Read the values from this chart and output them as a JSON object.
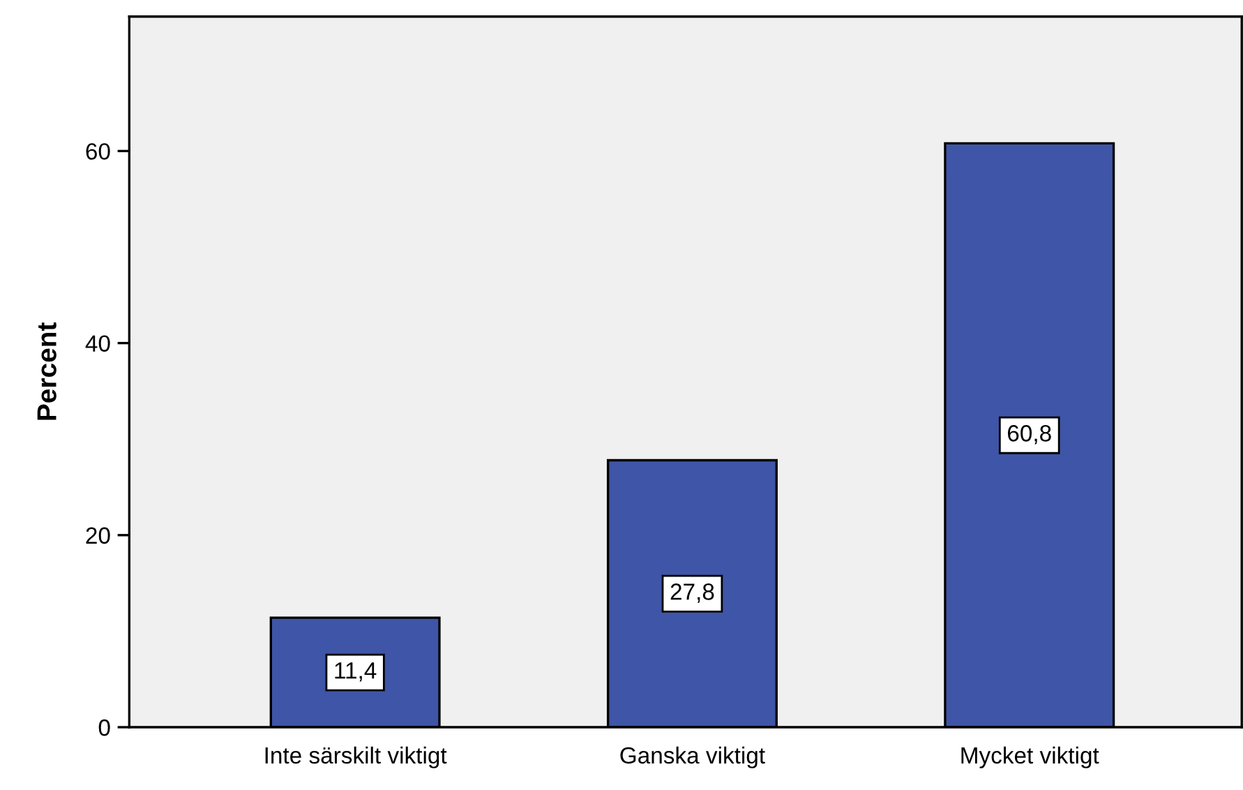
{
  "chart_data": {
    "type": "bar",
    "ylabel": "Percent",
    "categories": [
      "Inte särskilt viktigt",
      "Ganska viktigt",
      "Mycket viktigt"
    ],
    "values": [
      11.4,
      27.8,
      60.8
    ],
    "color": "#3f55a7",
    "value_labels": [
      "11,4",
      "27,8",
      "60,8"
    ],
    "ylim": [
      0,
      74
    ],
    "yticks": [
      0,
      20,
      40,
      60
    ],
    "grid": false,
    "legend": false
  }
}
